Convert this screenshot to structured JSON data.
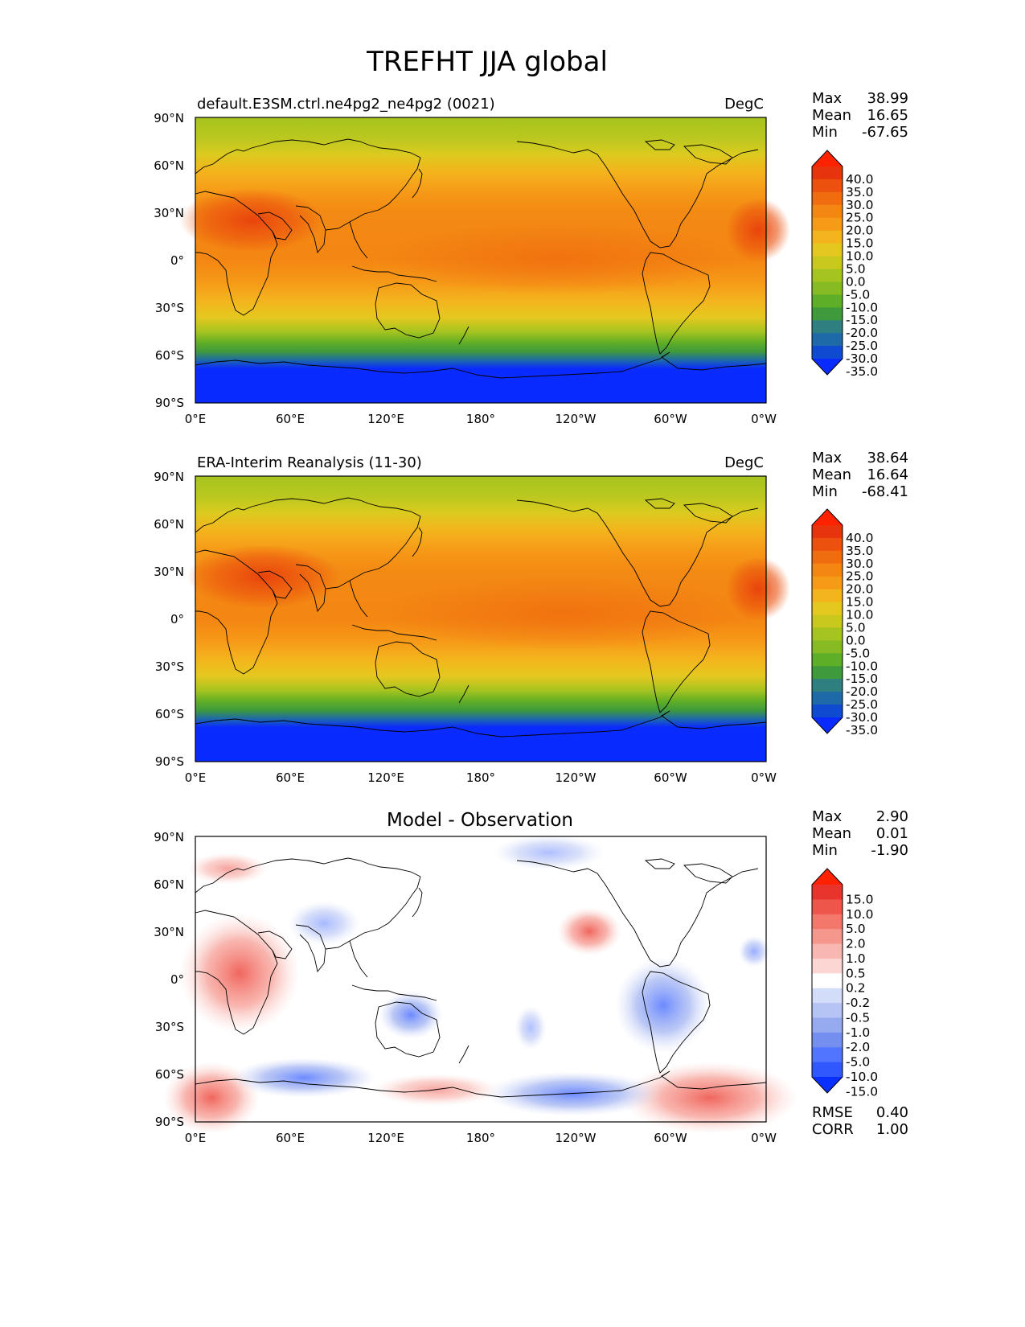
{
  "figure": {
    "title": "TREFHT JJA global"
  },
  "axes": {
    "lat_ticks": [
      "90°N",
      "60°N",
      "30°N",
      "0°",
      "30°S",
      "60°S",
      "90°S"
    ],
    "lon_ticks": [
      "0°E",
      "60°E",
      "120°E",
      "180°",
      "120°W",
      "60°W",
      "0°W"
    ]
  },
  "panels": [
    {
      "id": "test",
      "left_title": "default.E3SM.ctrl.ne4pg2_ne4pg2 (0021)",
      "center_title": "",
      "units": "DegC",
      "stats": [
        {
          "label": "Max",
          "value": "38.99"
        },
        {
          "label": "Mean",
          "value": "16.65"
        },
        {
          "label": "Min",
          "value": "-67.65"
        }
      ],
      "colorbar_ticks": [
        "40.0",
        "35.0",
        "30.0",
        "25.0",
        "20.0",
        "15.0",
        "10.0",
        "5.0",
        "0.0",
        "-5.0",
        "-10.0",
        "-15.0",
        "-20.0",
        "-25.0",
        "-30.0",
        "-35.0"
      ]
    },
    {
      "id": "reference",
      "left_title": "ERA-Interim Reanalysis (11-30)",
      "center_title": "",
      "units": "DegC",
      "stats": [
        {
          "label": "Max",
          "value": "38.64"
        },
        {
          "label": "Mean",
          "value": "16.64"
        },
        {
          "label": "Min",
          "value": "-68.41"
        }
      ],
      "colorbar_ticks": [
        "40.0",
        "35.0",
        "30.0",
        "25.0",
        "20.0",
        "15.0",
        "10.0",
        "5.0",
        "0.0",
        "-5.0",
        "-10.0",
        "-15.0",
        "-20.0",
        "-25.0",
        "-30.0",
        "-35.0"
      ]
    },
    {
      "id": "diff",
      "left_title": "",
      "center_title": "Model - Observation",
      "units": "",
      "stats": [
        {
          "label": "Max",
          "value": "2.90"
        },
        {
          "label": "Mean",
          "value": "0.01"
        },
        {
          "label": "Min",
          "value": "-1.90"
        }
      ],
      "colorbar_ticks": [
        "15.0",
        "10.0",
        "5.0",
        "2.0",
        "1.0",
        "0.5",
        "0.2",
        "-0.2",
        "-0.5",
        "-1.0",
        "-2.0",
        "-5.0",
        "-10.0",
        "-15.0"
      ],
      "extra_stats": [
        {
          "label": "RMSE",
          "value": "0.40"
        },
        {
          "label": "CORR",
          "value": "1.00"
        }
      ]
    }
  ],
  "colors": {
    "temperature_scale": [
      "#0a2bff",
      "#0f4bd0",
      "#1e6aa8",
      "#2e8080",
      "#3f9a3c",
      "#5fae27",
      "#86bb23",
      "#a6c41f",
      "#c8c81f",
      "#e5c81f",
      "#f4b41d",
      "#f69a18",
      "#f48612",
      "#f06d0f",
      "#ec520e",
      "#e8340c",
      "#ff2200"
    ],
    "diff_scale": [
      "#0a30ff",
      "#3158ff",
      "#5275ff",
      "#748ff0",
      "#96aaf0",
      "#b5c3f5",
      "#d3dcf8",
      "#ffffff",
      "#fbd6d3",
      "#f8b7b1",
      "#f6978d",
      "#f3776b",
      "#ee554b",
      "#e8342c",
      "#ff2200"
    ],
    "land_outline": "#000000"
  }
}
